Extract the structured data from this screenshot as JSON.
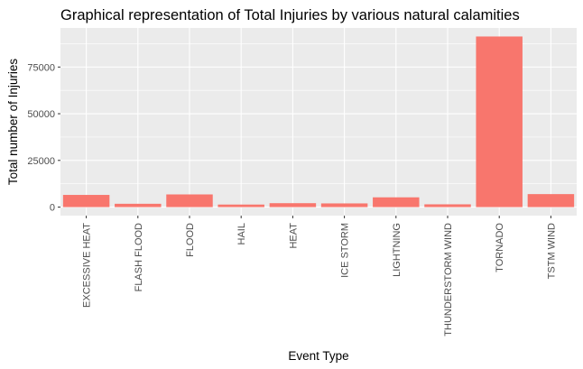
{
  "chart_data": {
    "type": "bar",
    "title": "Graphical representation of Total Injuries by various natural calamities",
    "xlabel": "Event Type",
    "ylabel": "Total number of Injuries",
    "categories": [
      "EXCESSIVE HEAT",
      "FLASH FLOOD",
      "FLOOD",
      "HAIL",
      "HEAT",
      "ICE STORM",
      "LIGHTNING",
      "THUNDERSTORM WIND",
      "TORNADO",
      "TSTM WIND"
    ],
    "values": [
      6525,
      1777,
      6789,
      1361,
      2100,
      1975,
      5230,
      1488,
      91346,
      6957
    ],
    "ylim": [
      -4567,
      95913
    ],
    "yticks": [
      0,
      25000,
      50000,
      75000
    ],
    "ytick_labels": [
      "0",
      "25000",
      "50000",
      "75000"
    ],
    "grid": true,
    "legend": "none",
    "colors": {
      "bar": "#f8766d",
      "panel": "#ebebeb",
      "grid": "#ffffff"
    }
  }
}
